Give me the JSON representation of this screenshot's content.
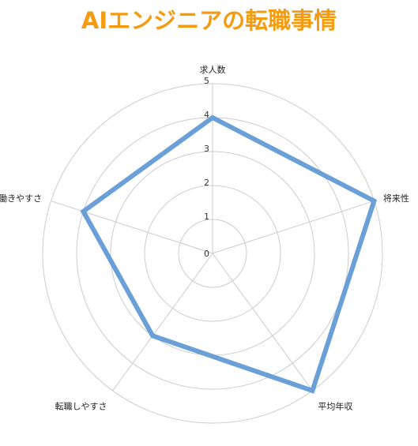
{
  "chart_data": {
    "type": "radar",
    "title": "AIエンジニアの転職事情",
    "axes": [
      "求人数",
      "将来性",
      "平均年収",
      "転職しやすさ",
      "働きやすさ"
    ],
    "series": [
      {
        "values": [
          4,
          5,
          5,
          3,
          4
        ]
      }
    ],
    "rlim": [
      0,
      5
    ],
    "ticks": [
      0,
      1,
      2,
      3,
      4,
      5
    ],
    "grid": true,
    "legend": "none"
  },
  "colors": {
    "title": "#f39c12",
    "series": "#6a9fd8",
    "grid": "#cccccc"
  }
}
